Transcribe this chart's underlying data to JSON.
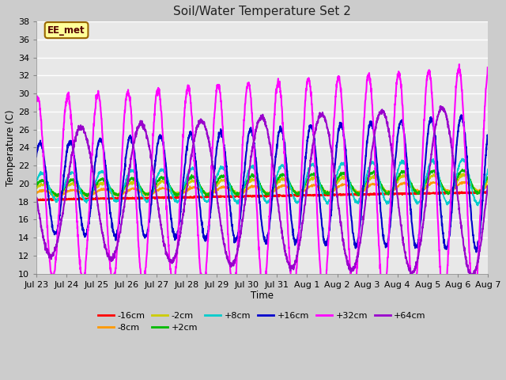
{
  "title": "Soil/Water Temperature Set 2",
  "xlabel": "Time",
  "ylabel": "Temperature (C)",
  "ylim": [
    10,
    38
  ],
  "annotation_text": "EE_met",
  "annotation_bg": "#ffff99",
  "annotation_border": "#996600",
  "colors": {
    "-16cm": "#ff0000",
    "-8cm": "#ff9900",
    "-2cm": "#cccc00",
    "+2cm": "#00bb00",
    "+8cm": "#00cccc",
    "+16cm": "#0000cc",
    "+32cm": "#ff00ff",
    "+64cm": "#9900cc"
  },
  "tick_labels": [
    "Jul 23",
    "Jul 24",
    "Jul 25",
    "Jul 26",
    "Jul 27",
    "Jul 28",
    "Jul 29",
    "Jul 30",
    "Jul 31",
    "Aug 1",
    "Aug 2",
    "Aug 3",
    "Aug 4",
    "Aug 5",
    "Aug 6",
    "Aug 7"
  ],
  "yticks": [
    10,
    12,
    14,
    16,
    18,
    20,
    22,
    24,
    26,
    28,
    30,
    32,
    34,
    36,
    38
  ],
  "legend_order": [
    "-16cm",
    "-8cm",
    "-2cm",
    "+2cm",
    "+8cm",
    "+16cm",
    "+32cm",
    "+64cm"
  ]
}
